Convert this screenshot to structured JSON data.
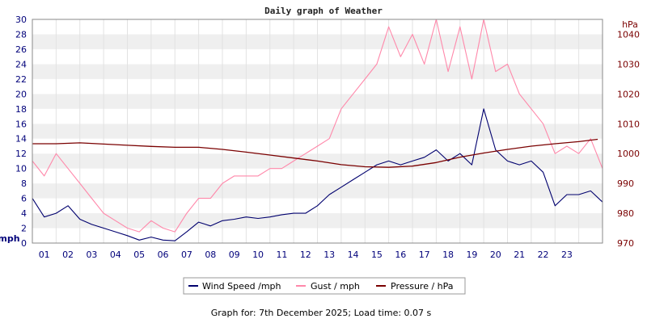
{
  "chart_data": {
    "type": "line",
    "title": "Daily graph of Weather",
    "x": {
      "tick_labels": [
        "01",
        "02",
        "03",
        "04",
        "05",
        "06",
        "07",
        "08",
        "09",
        "10",
        "11",
        "12",
        "13",
        "14",
        "15",
        "16",
        "17",
        "18",
        "19",
        "20",
        "21",
        "22",
        "23"
      ],
      "range_hours": [
        0,
        24
      ]
    },
    "y_left": {
      "unit_label": "mph",
      "range": [
        0,
        30
      ],
      "ticks": [
        0,
        2,
        4,
        6,
        8,
        10,
        12,
        14,
        16,
        18,
        20,
        22,
        24,
        26,
        28,
        30
      ]
    },
    "y_right": {
      "unit_label": "hPa",
      "range": [
        970,
        1045
      ],
      "ticks": [
        970,
        980,
        990,
        1000,
        1010,
        1020,
        1030,
        1040
      ]
    },
    "grid": "horizontal-bands",
    "legend": {
      "placement": "bottom",
      "entries": [
        "Wind Speed /mph",
        "Gust / mph",
        "Pressure / hPa"
      ]
    },
    "series": [
      {
        "name": "Wind Speed /mph",
        "axis": "left",
        "color": "#00006e",
        "x_hours": [
          0,
          0.5,
          1,
          1.5,
          2,
          2.5,
          3,
          3.5,
          4,
          4.5,
          5,
          5.5,
          6,
          6.5,
          7,
          7.5,
          8,
          8.5,
          9,
          9.5,
          10,
          10.5,
          11,
          11.5,
          12,
          12.5,
          13,
          13.5,
          14,
          14.5,
          15,
          15.5,
          16,
          16.5,
          17,
          17.5,
          18,
          18.5,
          19,
          19.5,
          20,
          20.5,
          21,
          21.5,
          22,
          22.5,
          23,
          23.5,
          24
        ],
        "values": [
          6,
          3.5,
          4,
          5,
          3.2,
          2.5,
          2,
          1.5,
          1,
          0.4,
          0.8,
          0.4,
          0.3,
          1.5,
          2.8,
          2.3,
          3,
          3.2,
          3.5,
          3.3,
          3.5,
          3.8,
          4,
          4,
          5,
          6.5,
          7.5,
          8.5,
          9.5,
          10.5,
          11,
          10.5,
          11,
          11.5,
          12.5,
          11,
          12,
          10.5,
          18,
          12.5,
          11,
          10.5,
          11,
          9.5,
          5,
          6.5,
          6.5,
          7,
          5.5
        ]
      },
      {
        "name": "Gust / mph",
        "axis": "left",
        "color": "#ff88aa",
        "x_hours": [
          0,
          0.5,
          1,
          1.5,
          2,
          2.5,
          3,
          3.5,
          4,
          4.5,
          5,
          5.5,
          6,
          6.5,
          7,
          7.5,
          8,
          8.5,
          9,
          9.5,
          10,
          10.5,
          11,
          11.5,
          12,
          12.5,
          13,
          13.5,
          14,
          14.5,
          15,
          15.5,
          16,
          16.5,
          17,
          17.5,
          18,
          18.5,
          19,
          19.5,
          20,
          20.5,
          21,
          21.5,
          22,
          22.5,
          23,
          23.5,
          24
        ],
        "values": [
          11,
          9,
          12,
          10,
          8,
          6,
          4,
          3,
          2,
          1.5,
          3,
          2,
          1.5,
          4,
          6,
          6,
          8,
          9,
          9,
          9,
          10,
          10,
          11,
          12,
          13,
          14,
          18,
          20,
          22,
          24,
          29,
          25,
          28,
          24,
          30,
          23,
          29,
          22,
          30,
          23,
          24,
          20,
          18,
          16,
          12,
          13,
          12,
          14,
          10
        ]
      },
      {
        "name": "Pressure / hPa",
        "axis": "right",
        "color": "#7a0000",
        "x_hours": [
          0,
          1,
          2,
          3,
          4,
          5,
          6,
          7,
          8,
          9,
          10,
          11,
          12,
          13,
          14,
          15,
          16,
          17,
          18,
          19,
          20,
          21,
          22,
          23,
          23.8
        ],
        "values": [
          1003.3,
          1003.3,
          1003.6,
          1003.2,
          1002.8,
          1002.4,
          1002.1,
          1002.1,
          1001.4,
          1000.5,
          999.5,
          998.5,
          997.5,
          996.3,
          995.6,
          995.4,
          995.8,
          997,
          998.8,
          1000.2,
          1001.4,
          1002.5,
          1003.3,
          1004,
          1004.8
        ]
      }
    ]
  },
  "footer": {
    "text": "Graph for: 7th December 2025; Load time: 0.07 s"
  }
}
